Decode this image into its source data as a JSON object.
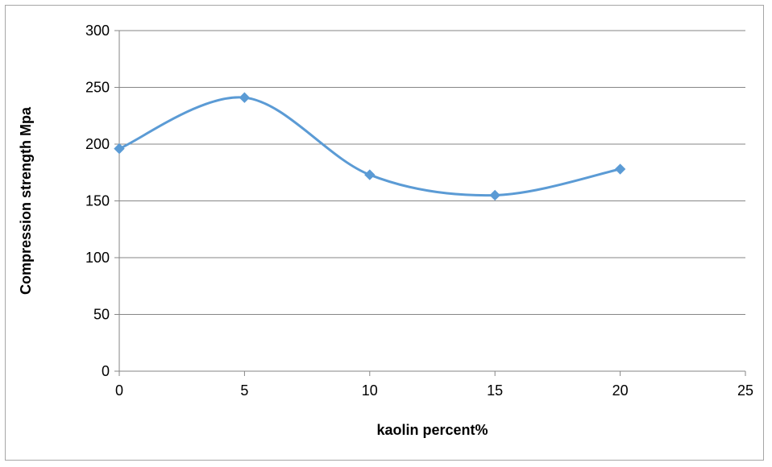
{
  "chart_data": {
    "type": "scatter",
    "title": "",
    "xlabel": "kaolin percent%",
    "ylabel": "Compression strength Mpa",
    "xlim": [
      0,
      25
    ],
    "ylim": [
      0,
      300
    ],
    "xticks": [
      0,
      5,
      10,
      15,
      20,
      25
    ],
    "yticks": [
      0,
      50,
      100,
      150,
      200,
      250,
      300
    ],
    "grid": "horizontal",
    "smooth_line": true,
    "marker": "diamond",
    "series": [
      {
        "x": [
          0,
          5,
          10,
          15,
          20
        ],
        "y": [
          196,
          241,
          173,
          155,
          178
        ],
        "color": "#5b9bd5"
      }
    ]
  }
}
